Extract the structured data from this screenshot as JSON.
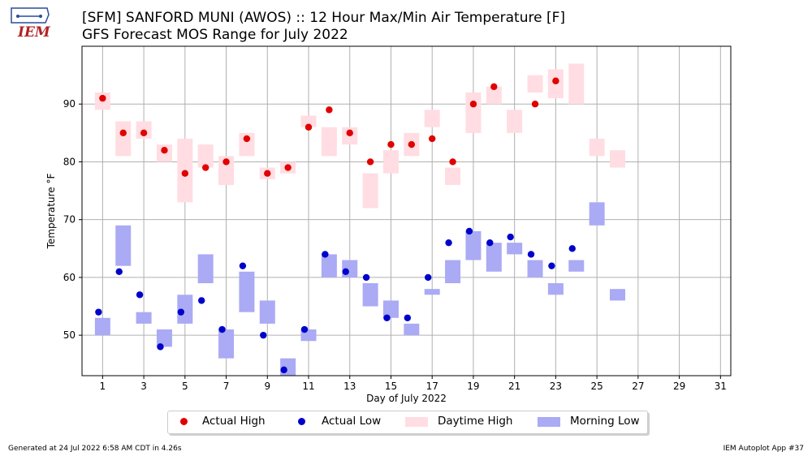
{
  "header": {
    "title_line1": "[SFM] SANFORD MUNI (AWOS) :: 12 Hour Max/Min Air Temperature [F]",
    "title_line2": "GFS Forecast MOS Range for July 2022",
    "logo_text": "IEM"
  },
  "footer": {
    "generated": "Generated at 24 Jul 2022 6:58 AM CDT in 4.26s",
    "app": "IEM Autoplot App #37"
  },
  "colors": {
    "actual_high": "#e00000",
    "actual_low": "#0000cc",
    "daytime_high": "#ffdde2",
    "morning_low": "#aaaaf5",
    "grid": "#b0b0b0"
  },
  "legend": {
    "actual_high": "Actual High",
    "actual_low": "Actual Low",
    "daytime_high": "Daytime High",
    "morning_low": "Morning Low"
  },
  "chart_data": {
    "type": "scatter",
    "xlabel": "Day of July 2022",
    "ylabel": "Temperature °F",
    "xlim": [
      0,
      31.5
    ],
    "ylim": [
      43,
      100
    ],
    "x_ticks": [
      1,
      3,
      5,
      7,
      9,
      11,
      13,
      15,
      17,
      19,
      21,
      23,
      25,
      27,
      29,
      31
    ],
    "y_ticks": [
      50,
      60,
      70,
      80,
      90
    ],
    "grid": true,
    "legend_position": "bottom-center",
    "actual_high": [
      {
        "day": 1,
        "value": 91
      },
      {
        "day": 2,
        "value": 85
      },
      {
        "day": 3,
        "value": 85
      },
      {
        "day": 4,
        "value": 82
      },
      {
        "day": 5,
        "value": 78
      },
      {
        "day": 6,
        "value": 79
      },
      {
        "day": 7,
        "value": 80
      },
      {
        "day": 8,
        "value": 84
      },
      {
        "day": 9,
        "value": 78
      },
      {
        "day": 10,
        "value": 79
      },
      {
        "day": 11,
        "value": 86
      },
      {
        "day": 12,
        "value": 89
      },
      {
        "day": 13,
        "value": 85
      },
      {
        "day": 14,
        "value": 80
      },
      {
        "day": 15,
        "value": 83
      },
      {
        "day": 16,
        "value": 83
      },
      {
        "day": 17,
        "value": 84
      },
      {
        "day": 18,
        "value": 80
      },
      {
        "day": 19,
        "value": 90
      },
      {
        "day": 20,
        "value": 93
      },
      {
        "day": 22,
        "value": 90
      },
      {
        "day": 23,
        "value": 94
      }
    ],
    "actual_low": [
      {
        "day": 1,
        "value": 54
      },
      {
        "day": 2,
        "value": 61
      },
      {
        "day": 3,
        "value": 57
      },
      {
        "day": 4,
        "value": 48
      },
      {
        "day": 5,
        "value": 54
      },
      {
        "day": 6,
        "value": 56
      },
      {
        "day": 7,
        "value": 51
      },
      {
        "day": 8,
        "value": 62
      },
      {
        "day": 9,
        "value": 50
      },
      {
        "day": 10,
        "value": 44
      },
      {
        "day": 11,
        "value": 51
      },
      {
        "day": 12,
        "value": 64
      },
      {
        "day": 13,
        "value": 61
      },
      {
        "day": 14,
        "value": 60
      },
      {
        "day": 15,
        "value": 53
      },
      {
        "day": 16,
        "value": 53
      },
      {
        "day": 17,
        "value": 60
      },
      {
        "day": 18,
        "value": 66
      },
      {
        "day": 19,
        "value": 68
      },
      {
        "day": 20,
        "value": 66
      },
      {
        "day": 21,
        "value": 67
      },
      {
        "day": 22,
        "value": 64
      },
      {
        "day": 23,
        "value": 62
      },
      {
        "day": 24,
        "value": 65
      }
    ],
    "daytime_high_range": [
      {
        "day": 1,
        "min": 89,
        "max": 92
      },
      {
        "day": 2,
        "min": 81,
        "max": 87
      },
      {
        "day": 3,
        "min": 84,
        "max": 87
      },
      {
        "day": 4,
        "min": 80,
        "max": 83
      },
      {
        "day": 5,
        "min": 73,
        "max": 84
      },
      {
        "day": 6,
        "min": 79,
        "max": 83
      },
      {
        "day": 7,
        "min": 76,
        "max": 81
      },
      {
        "day": 8,
        "min": 81,
        "max": 85
      },
      {
        "day": 9,
        "min": 77,
        "max": 79
      },
      {
        "day": 10,
        "min": 78,
        "max": 80
      },
      {
        "day": 11,
        "min": 86,
        "max": 88
      },
      {
        "day": 12,
        "min": 81,
        "max": 86
      },
      {
        "day": 13,
        "min": 83,
        "max": 86
      },
      {
        "day": 14,
        "min": 72,
        "max": 78
      },
      {
        "day": 15,
        "min": 78,
        "max": 82
      },
      {
        "day": 16,
        "min": 81,
        "max": 85
      },
      {
        "day": 17,
        "min": 86,
        "max": 89
      },
      {
        "day": 18,
        "min": 76,
        "max": 79
      },
      {
        "day": 19,
        "min": 85,
        "max": 92
      },
      {
        "day": 20,
        "min": 90,
        "max": 93
      },
      {
        "day": 21,
        "min": 85,
        "max": 89
      },
      {
        "day": 22,
        "min": 92,
        "max": 95
      },
      {
        "day": 23,
        "min": 91,
        "max": 96
      },
      {
        "day": 24,
        "min": 90,
        "max": 97
      },
      {
        "day": 25,
        "min": 81,
        "max": 84
      },
      {
        "day": 26,
        "min": 79,
        "max": 82
      }
    ],
    "morning_low_range": [
      {
        "day": 1,
        "min": 50,
        "max": 53
      },
      {
        "day": 2,
        "min": 62,
        "max": 69
      },
      {
        "day": 3,
        "min": 52,
        "max": 54
      },
      {
        "day": 4,
        "min": 48,
        "max": 51
      },
      {
        "day": 5,
        "min": 52,
        "max": 57
      },
      {
        "day": 6,
        "min": 59,
        "max": 64
      },
      {
        "day": 7,
        "min": 46,
        "max": 51
      },
      {
        "day": 8,
        "min": 54,
        "max": 61
      },
      {
        "day": 9,
        "min": 52,
        "max": 56
      },
      {
        "day": 10,
        "min": 43,
        "max": 46
      },
      {
        "day": 11,
        "min": 49,
        "max": 51
      },
      {
        "day": 12,
        "min": 60,
        "max": 64
      },
      {
        "day": 13,
        "min": 60,
        "max": 63
      },
      {
        "day": 14,
        "min": 55,
        "max": 59
      },
      {
        "day": 15,
        "min": 53,
        "max": 56
      },
      {
        "day": 16,
        "min": 50,
        "max": 52
      },
      {
        "day": 17,
        "min": 57,
        "max": 58
      },
      {
        "day": 18,
        "min": 59,
        "max": 63
      },
      {
        "day": 19,
        "min": 63,
        "max": 68
      },
      {
        "day": 20,
        "min": 61,
        "max": 66
      },
      {
        "day": 21,
        "min": 64,
        "max": 66
      },
      {
        "day": 22,
        "min": 60,
        "max": 63
      },
      {
        "day": 23,
        "min": 57,
        "max": 59
      },
      {
        "day": 24,
        "min": 61,
        "max": 63
      },
      {
        "day": 25,
        "min": 69,
        "max": 73
      },
      {
        "day": 26,
        "min": 56,
        "max": 58
      }
    ]
  }
}
